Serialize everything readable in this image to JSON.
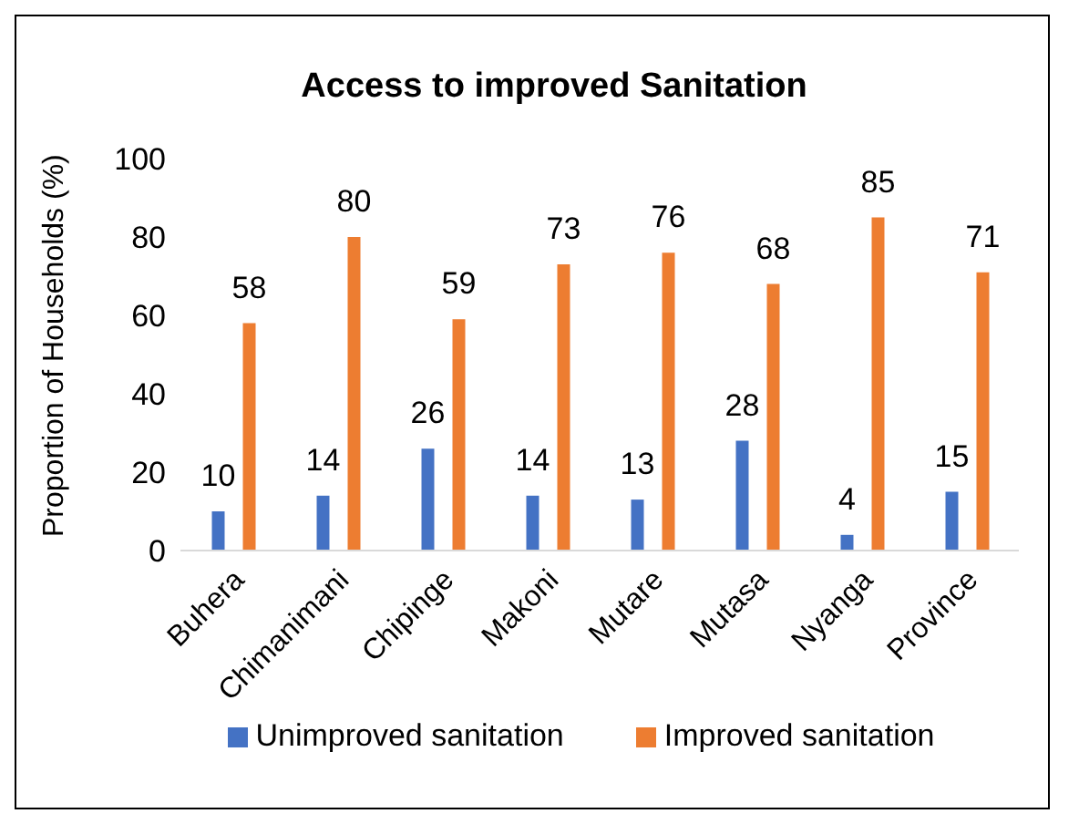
{
  "chart_data": {
    "type": "bar",
    "title": "Access to improved Sanitation",
    "ylabel": "Proportion of Households (%)",
    "categories": [
      "Buhera",
      "Chimanimani",
      "Chipinge",
      "Makoni",
      "Mutare",
      "Mutasa",
      "Nyanga",
      "Province"
    ],
    "series": [
      {
        "name": "Unimproved sanitation",
        "color": "#4472c4",
        "values": [
          10,
          14,
          26,
          14,
          13,
          28,
          4,
          15
        ]
      },
      {
        "name": "Improved sanitation",
        "color": "#ed7d31",
        "values": [
          58,
          80,
          59,
          73,
          76,
          68,
          85,
          71
        ]
      }
    ],
    "ylim": [
      0,
      100
    ],
    "yticks": [
      0,
      20,
      40,
      60,
      80,
      100
    ],
    "grid": false,
    "legend": "bottom",
    "data_labels": true
  }
}
